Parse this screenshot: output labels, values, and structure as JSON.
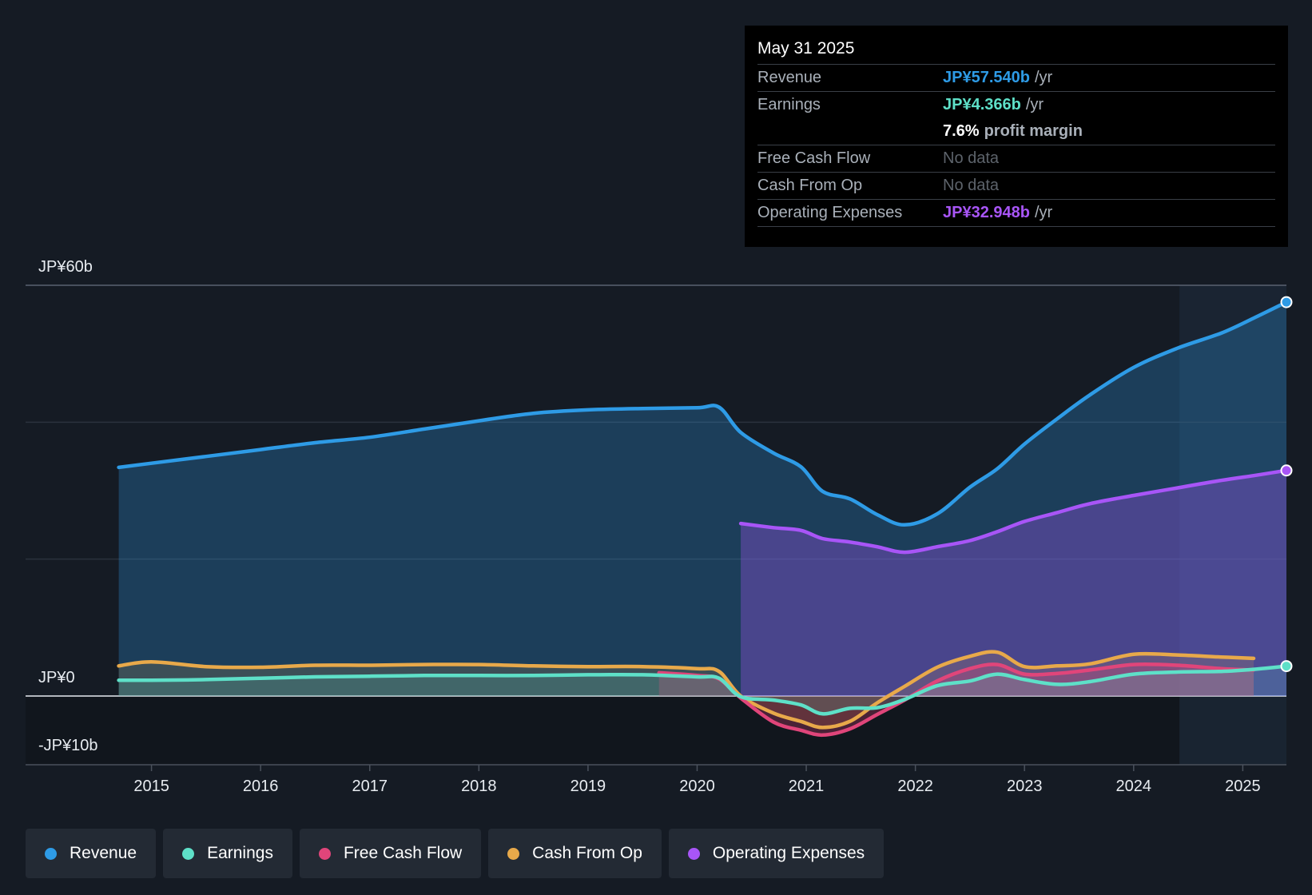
{
  "chart_data": {
    "type": "area",
    "x": [
      2014.7,
      2015.0,
      2015.5,
      2016.0,
      2016.5,
      2017.0,
      2017.5,
      2018.0,
      2018.5,
      2019.0,
      2019.5,
      2020.0,
      2020.2,
      2020.4,
      2020.7,
      2020.95,
      2021.15,
      2021.4,
      2021.65,
      2021.9,
      2022.2,
      2022.5,
      2022.75,
      2023.0,
      2023.3,
      2023.6,
      2024.0,
      2024.4,
      2024.8,
      2025.1,
      2025.4
    ],
    "series": [
      {
        "name": "Revenue",
        "color": "#2e9be6",
        "values": [
          33.4,
          34.0,
          35.0,
          36.0,
          37.0,
          37.8,
          39.0,
          40.2,
          41.3,
          41.8,
          42.0,
          42.1,
          42.2,
          38.5,
          35.5,
          33.5,
          29.9,
          28.8,
          26.5,
          25.0,
          26.6,
          30.5,
          33.2,
          36.8,
          40.5,
          44.0,
          48.0,
          50.8,
          53.0,
          55.2,
          57.54
        ]
      },
      {
        "name": "Operating Expenses",
        "color": "#a855f7",
        "x_start": 2020.4,
        "values": [
          null,
          null,
          null,
          null,
          null,
          null,
          null,
          null,
          null,
          null,
          null,
          null,
          null,
          25.2,
          24.6,
          24.2,
          23.0,
          22.5,
          21.8,
          21.0,
          21.8,
          22.7,
          24.0,
          25.5,
          26.8,
          28.1,
          29.3,
          30.4,
          31.5,
          32.2,
          32.948
        ]
      },
      {
        "name": "Earnings",
        "color": "#5ee0c8",
        "values": [
          2.3,
          2.3,
          2.4,
          2.6,
          2.8,
          2.9,
          3.0,
          3.0,
          3.0,
          3.1,
          3.1,
          2.8,
          2.6,
          -0.1,
          -0.6,
          -1.3,
          -2.6,
          -1.8,
          -1.7,
          -0.5,
          1.5,
          2.2,
          3.2,
          2.4,
          1.7,
          2.1,
          3.2,
          3.5,
          3.6,
          3.9,
          4.366
        ]
      },
      {
        "name": "Free Cash Flow",
        "color": "#e0457a",
        "x_start": 2019.65,
        "values": [
          null,
          null,
          null,
          null,
          null,
          null,
          null,
          null,
          null,
          null,
          3.4,
          3.0,
          2.5,
          -0.3,
          -3.8,
          -5.0,
          -5.7,
          -4.8,
          -2.7,
          -0.6,
          2.2,
          4.0,
          4.6,
          3.2,
          3.3,
          3.8,
          4.6,
          4.5,
          4.0,
          3.8,
          null
        ]
      },
      {
        "name": "Cash From Op",
        "color": "#e8a94a",
        "values": [
          4.4,
          5.0,
          4.3,
          4.2,
          4.5,
          4.5,
          4.6,
          4.6,
          4.4,
          4.3,
          4.3,
          4.0,
          3.6,
          0.0,
          -2.5,
          -3.7,
          -4.6,
          -3.7,
          -1.0,
          1.4,
          4.2,
          5.8,
          6.4,
          4.3,
          4.4,
          4.7,
          6.1,
          6.0,
          5.7,
          5.5,
          null
        ]
      }
    ],
    "title": "",
    "xlabel": "",
    "ylabel": "",
    "ylim": [
      -10,
      60
    ],
    "x_ticks": [
      "2015",
      "2016",
      "2017",
      "2018",
      "2019",
      "2020",
      "2021",
      "2022",
      "2023",
      "2024",
      "2025"
    ],
    "y_tick_labels": {
      "top": "JP¥60b",
      "zero": "JP¥0",
      "bottom": "-JP¥10b"
    },
    "legend": [
      "Revenue",
      "Earnings",
      "Free Cash Flow",
      "Cash From Op",
      "Operating Expenses"
    ],
    "highlight_from": 2024.42
  },
  "tooltip": {
    "date": "May 31 2025",
    "revenue_label": "Revenue",
    "revenue_value": "JP¥57.540b",
    "earnings_label": "Earnings",
    "earnings_value": "JP¥4.366b",
    "unit": "/yr",
    "margin_value": "7.6%",
    "margin_label": "profit margin",
    "fcf_label": "Free Cash Flow",
    "fcf_value": "No data",
    "cfo_label": "Cash From Op",
    "cfo_value": "No data",
    "opex_label": "Operating Expenses",
    "opex_value": "JP¥32.948b"
  },
  "legend": {
    "revenue": "Revenue",
    "earnings": "Earnings",
    "fcf": "Free Cash Flow",
    "cfo": "Cash From Op",
    "opex": "Operating Expenses"
  },
  "colors": {
    "revenue": "#2e9be6",
    "earnings": "#5ee0c8",
    "fcf": "#e0457a",
    "cfo": "#e8a94a",
    "opex": "#a855f7"
  }
}
